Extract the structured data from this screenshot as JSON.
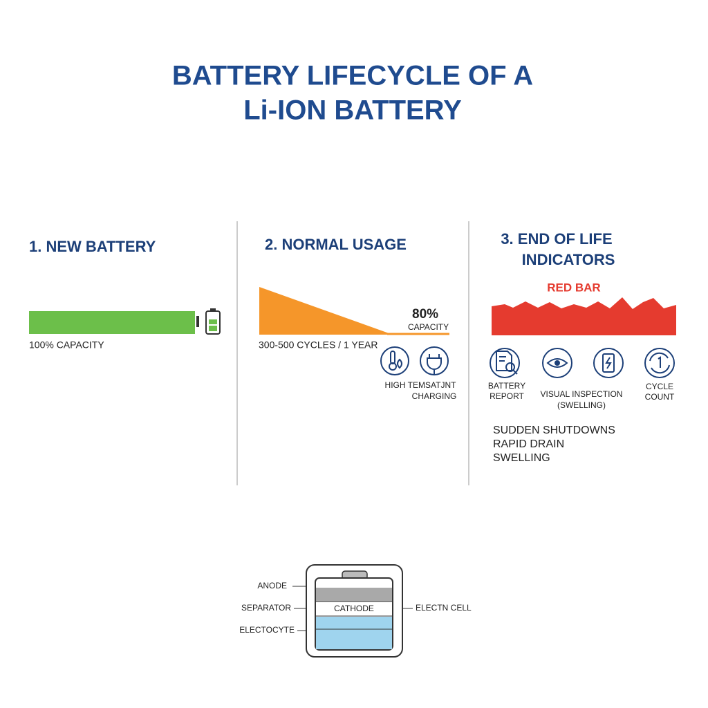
{
  "title": [
    "BATTERY LIFECYCLE OF A",
    "Li-ION BATTERY"
  ],
  "sections": [
    {
      "heading": "1. NEW BATTERY",
      "caption": "100% CAPACITY"
    },
    {
      "heading": "2. NORMAL USAGE",
      "value": "80%",
      "value_caption": "CAPACITY",
      "caption": "300-500 CYCLES / 1 YEAR",
      "factors": [
        "HIGH TEMSATJNT",
        "CHARGING"
      ]
    },
    {
      "heading": [
        "3. END OF LIFE",
        "INDICATORS"
      ],
      "bar_label": "RED BAR",
      "checks": [
        [
          "BATTERY",
          "REPORT"
        ],
        [
          "VISUAL INSPECTION",
          "(SWELLING)"
        ],
        [
          "CYCLE",
          "COUNT"
        ]
      ],
      "symptoms": [
        "SUDDEN SHUTDOWNS",
        "RAPID DRAIN",
        "SWELLING"
      ]
    }
  ],
  "cell_diagram": {
    "labels": [
      "ANODE",
      "SEPARATOR",
      "ELECTOCYTE"
    ],
    "cathode": "CATHODE",
    "right_label": "ELECTN CELL"
  }
}
